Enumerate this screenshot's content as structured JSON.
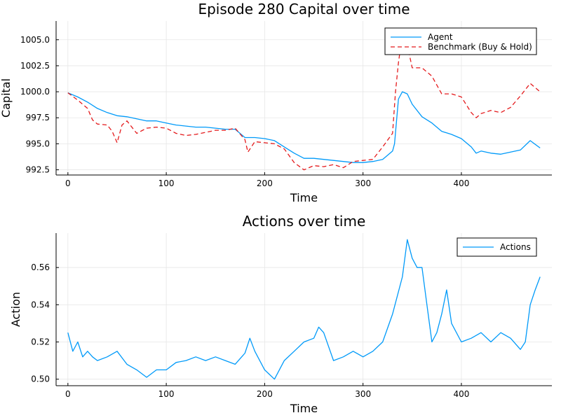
{
  "chart_data": [
    {
      "type": "line",
      "title": "Episode 280 Capital over time",
      "xlabel": "Time",
      "ylabel": "Capital",
      "xlim": [
        -12,
        492
      ],
      "ylim": [
        992.0,
        1006.8
      ],
      "xticks": [
        0,
        100,
        200,
        300,
        400
      ],
      "yticks": [
        992.5,
        995.0,
        997.5,
        1000.0,
        1002.5,
        1005.0
      ],
      "ytick_labels": [
        "992.5",
        "995.0",
        "997.5",
        "1000.0",
        "1002.5",
        "1005.0"
      ],
      "grid": true,
      "legend": "top-right",
      "series": [
        {
          "name": "Agent",
          "color": "#009af9",
          "style": "solid",
          "points": [
            [
              0,
              999.9
            ],
            [
              10,
              999.5
            ],
            [
              20,
              999.0
            ],
            [
              30,
              998.4
            ],
            [
              40,
              998.0
            ],
            [
              50,
              997.7
            ],
            [
              60,
              997.6
            ],
            [
              70,
              997.4
            ],
            [
              80,
              997.2
            ],
            [
              90,
              997.2
            ],
            [
              100,
              997.0
            ],
            [
              110,
              996.8
            ],
            [
              120,
              996.7
            ],
            [
              130,
              996.6
            ],
            [
              140,
              996.6
            ],
            [
              150,
              996.5
            ],
            [
              160,
              996.4
            ],
            [
              170,
              996.4
            ],
            [
              180,
              995.6
            ],
            [
              190,
              995.6
            ],
            [
              200,
              995.5
            ],
            [
              210,
              995.3
            ],
            [
              220,
              994.7
            ],
            [
              230,
              994.1
            ],
            [
              240,
              993.6
            ],
            [
              250,
              993.6
            ],
            [
              260,
              993.5
            ],
            [
              270,
              993.4
            ],
            [
              280,
              993.3
            ],
            [
              290,
              993.2
            ],
            [
              300,
              993.2
            ],
            [
              310,
              993.3
            ],
            [
              320,
              993.5
            ],
            [
              330,
              994.3
            ],
            [
              332,
              995.0
            ],
            [
              336,
              999.3
            ],
            [
              340,
              1000.0
            ],
            [
              345,
              999.8
            ],
            [
              350,
              998.8
            ],
            [
              360,
              997.6
            ],
            [
              370,
              997.0
            ],
            [
              380,
              996.2
            ],
            [
              390,
              995.9
            ],
            [
              400,
              995.5
            ],
            [
              410,
              994.7
            ],
            [
              415,
              994.1
            ],
            [
              420,
              994.3
            ],
            [
              430,
              994.1
            ],
            [
              440,
              994.0
            ],
            [
              450,
              994.2
            ],
            [
              460,
              994.4
            ],
            [
              470,
              995.3
            ],
            [
              480,
              994.6
            ]
          ]
        },
        {
          "name": "Benchmark (Buy & Hold)",
          "color": "#e26f46",
          "style": "dashed",
          "points": [
            [
              0,
              999.9
            ],
            [
              10,
              999.2
            ],
            [
              20,
              998.4
            ],
            [
              25,
              997.3
            ],
            [
              30,
              996.9
            ],
            [
              40,
              996.8
            ],
            [
              45,
              996.2
            ],
            [
              50,
              995.1
            ],
            [
              55,
              996.8
            ],
            [
              60,
              997.2
            ],
            [
              70,
              996.0
            ],
            [
              80,
              996.5
            ],
            [
              90,
              996.6
            ],
            [
              100,
              996.5
            ],
            [
              110,
              996.0
            ],
            [
              120,
              995.8
            ],
            [
              130,
              995.9
            ],
            [
              140,
              996.1
            ],
            [
              150,
              996.3
            ],
            [
              160,
              996.3
            ],
            [
              170,
              996.5
            ],
            [
              180,
              995.4
            ],
            [
              183,
              994.2
            ],
            [
              190,
              995.2
            ],
            [
              200,
              995.1
            ],
            [
              210,
              995.0
            ],
            [
              220,
              994.5
            ],
            [
              230,
              993.2
            ],
            [
              240,
              992.5
            ],
            [
              250,
              992.9
            ],
            [
              260,
              992.8
            ],
            [
              270,
              993.0
            ],
            [
              280,
              992.7
            ],
            [
              290,
              993.3
            ],
            [
              300,
              993.4
            ],
            [
              310,
              993.5
            ],
            [
              320,
              994.7
            ],
            [
              330,
              996.0
            ],
            [
              333,
              1000.0
            ],
            [
              336,
              1002.8
            ],
            [
              340,
              1005.5
            ],
            [
              345,
              1004.5
            ],
            [
              350,
              1002.3
            ],
            [
              360,
              1002.3
            ],
            [
              370,
              1001.5
            ],
            [
              380,
              999.8
            ],
            [
              390,
              999.8
            ],
            [
              400,
              999.5
            ],
            [
              410,
              998.0
            ],
            [
              415,
              997.5
            ],
            [
              420,
              997.9
            ],
            [
              430,
              998.2
            ],
            [
              440,
              998.0
            ],
            [
              450,
              998.5
            ],
            [
              460,
              999.6
            ],
            [
              470,
              1000.8
            ],
            [
              480,
              1000.0
            ]
          ]
        }
      ]
    },
    {
      "type": "line",
      "title": "Actions over time",
      "xlabel": "Time",
      "ylabel": "Action",
      "xlim": [
        -12,
        492
      ],
      "ylim": [
        0.4965,
        0.5785
      ],
      "xticks": [
        0,
        100,
        200,
        300,
        400
      ],
      "yticks": [
        0.5,
        0.52,
        0.54,
        0.56
      ],
      "ytick_labels": [
        "0.50",
        "0.52",
        "0.54",
        "0.56"
      ],
      "grid": true,
      "legend": "top-right",
      "series": [
        {
          "name": "Actions",
          "color": "#009af9",
          "style": "solid",
          "points": [
            [
              0,
              0.525
            ],
            [
              5,
              0.515
            ],
            [
              10,
              0.52
            ],
            [
              15,
              0.512
            ],
            [
              20,
              0.515
            ],
            [
              25,
              0.512
            ],
            [
              30,
              0.51
            ],
            [
              40,
              0.512
            ],
            [
              50,
              0.515
            ],
            [
              60,
              0.508
            ],
            [
              70,
              0.505
            ],
            [
              80,
              0.501
            ],
            [
              90,
              0.505
            ],
            [
              100,
              0.505
            ],
            [
              110,
              0.509
            ],
            [
              120,
              0.51
            ],
            [
              130,
              0.512
            ],
            [
              140,
              0.51
            ],
            [
              150,
              0.512
            ],
            [
              160,
              0.51
            ],
            [
              170,
              0.508
            ],
            [
              180,
              0.514
            ],
            [
              185,
              0.522
            ],
            [
              190,
              0.515
            ],
            [
              200,
              0.505
            ],
            [
              210,
              0.5
            ],
            [
              220,
              0.51
            ],
            [
              230,
              0.515
            ],
            [
              240,
              0.52
            ],
            [
              250,
              0.522
            ],
            [
              255,
              0.528
            ],
            [
              260,
              0.525
            ],
            [
              270,
              0.51
            ],
            [
              280,
              0.512
            ],
            [
              290,
              0.515
            ],
            [
              300,
              0.512
            ],
            [
              310,
              0.515
            ],
            [
              320,
              0.52
            ],
            [
              330,
              0.535
            ],
            [
              340,
              0.555
            ],
            [
              345,
              0.575
            ],
            [
              350,
              0.565
            ],
            [
              355,
              0.56
            ],
            [
              360,
              0.56
            ],
            [
              365,
              0.54
            ],
            [
              370,
              0.52
            ],
            [
              375,
              0.525
            ],
            [
              380,
              0.535
            ],
            [
              385,
              0.548
            ],
            [
              390,
              0.53
            ],
            [
              400,
              0.52
            ],
            [
              410,
              0.522
            ],
            [
              420,
              0.525
            ],
            [
              430,
              0.52
            ],
            [
              440,
              0.525
            ],
            [
              450,
              0.522
            ],
            [
              460,
              0.516
            ],
            [
              465,
              0.52
            ],
            [
              470,
              0.54
            ],
            [
              475,
              0.548
            ],
            [
              480,
              0.555
            ]
          ]
        }
      ]
    }
  ]
}
